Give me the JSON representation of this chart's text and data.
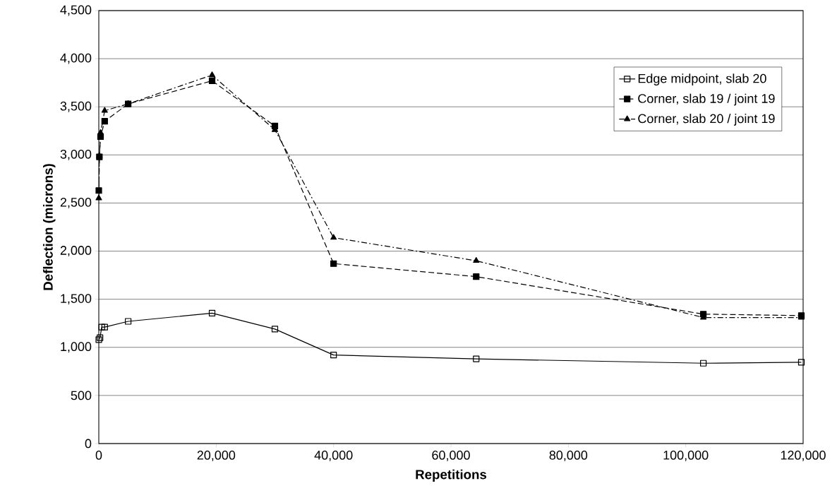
{
  "chart_data": {
    "type": "line",
    "xlabel": "Repetitions",
    "ylabel": "Deflection (microns)",
    "xlim": [
      0,
      120000
    ],
    "xticks": [
      {
        "value": 0,
        "label": "0"
      },
      {
        "value": 20000,
        "label": "20,000"
      },
      {
        "value": 40000,
        "label": "40,000"
      },
      {
        "value": 60000,
        "label": "60,000"
      },
      {
        "value": 80000,
        "label": "80,000"
      },
      {
        "value": 100000,
        "label": "100,000"
      },
      {
        "value": 120000,
        "label": "120,000"
      }
    ],
    "ylim": [
      0,
      4500
    ],
    "yticks": [
      {
        "value": 0,
        "label": "0"
      },
      {
        "value": 500,
        "label": "500"
      },
      {
        "value": 1000,
        "label": "1,000"
      },
      {
        "value": 1500,
        "label": "1,500"
      },
      {
        "value": 2000,
        "label": "2,000"
      },
      {
        "value": 2500,
        "label": "2,500"
      },
      {
        "value": 3000,
        "label": "3,000"
      },
      {
        "value": 3500,
        "label": "3,500"
      },
      {
        "value": 4000,
        "label": "4,000"
      },
      {
        "value": 4500,
        "label": "4,500"
      }
    ],
    "grid": "y",
    "legend": "top right",
    "series": [
      {
        "name": "Edge midpoint, slab 20",
        "color": "#000000",
        "marker": "square_open",
        "line_style": "solid",
        "x": [
          0,
          200,
          500,
          1000,
          5000,
          19300,
          30000,
          40000,
          64300,
          103000,
          119700
        ],
        "values": [
          1080,
          1100,
          1210,
          1210,
          1270,
          1355,
          1190,
          920,
          880,
          835,
          845
        ]
      },
      {
        "name": "Corner, slab 19 / joint 19",
        "color": "#000000",
        "marker": "square",
        "line_style": "dashed",
        "x": [
          0,
          100,
          300,
          1000,
          5000,
          19300,
          30000,
          40000,
          64300,
          103000,
          119700
        ],
        "values": [
          2630,
          2980,
          3190,
          3350,
          3530,
          3770,
          3300,
          1870,
          1735,
          1345,
          1330
        ]
      },
      {
        "name": "Corner, slab 20 / joint 19",
        "color": "#000000",
        "marker": "triangle",
        "line_style": "dashdot",
        "x": [
          0,
          100,
          300,
          1000,
          5000,
          19300,
          30000,
          40000,
          64300,
          103000,
          119700
        ],
        "values": [
          2550,
          2990,
          3230,
          3460,
          3530,
          3830,
          3260,
          2140,
          1900,
          1310,
          1310
        ]
      }
    ]
  }
}
